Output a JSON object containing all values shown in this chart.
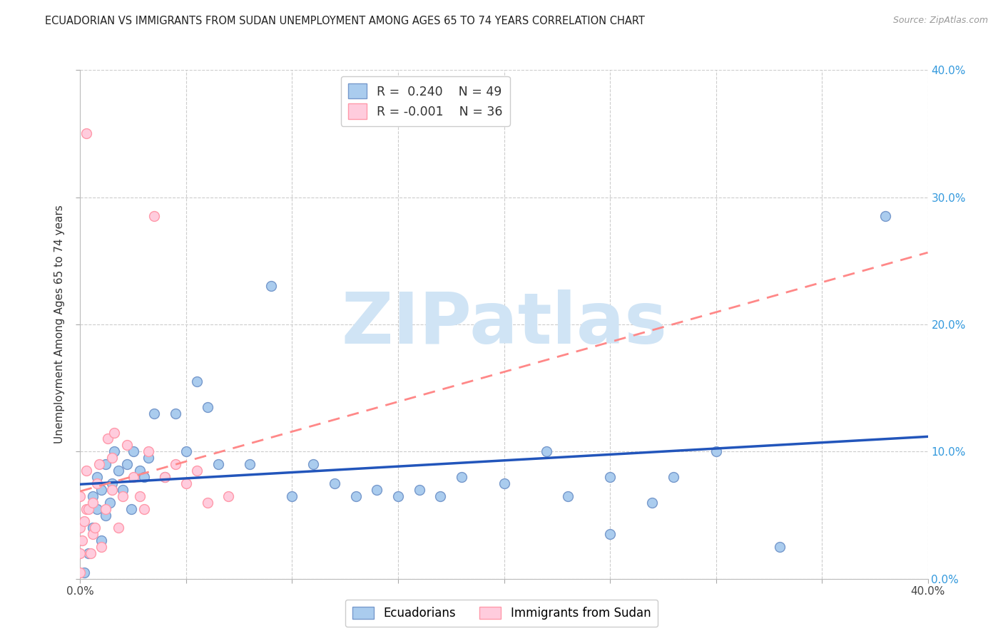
{
  "title": "ECUADORIAN VS IMMIGRANTS FROM SUDAN UNEMPLOYMENT AMONG AGES 65 TO 74 YEARS CORRELATION CHART",
  "source": "Source: ZipAtlas.com",
  "ylabel": "Unemployment Among Ages 65 to 74 years",
  "xlim": [
    0.0,
    0.4
  ],
  "ylim": [
    0.0,
    0.4
  ],
  "xticks": [
    0.0,
    0.05,
    0.1,
    0.15,
    0.2,
    0.25,
    0.3,
    0.35,
    0.4
  ],
  "yticks": [
    0.0,
    0.1,
    0.2,
    0.3,
    0.4
  ],
  "ytick_labels_right": [
    "0.0%",
    "10.0%",
    "20.0%",
    "30.0%",
    "40.0%"
  ],
  "blue_marker_face": "#AACCEE",
  "blue_marker_edge": "#7799CC",
  "pink_marker_face": "#FFCCDD",
  "pink_marker_edge": "#FF99AA",
  "trend_blue_color": "#2255BB",
  "trend_pink_color": "#FF8888",
  "R_blue": 0.24,
  "N_blue": 49,
  "R_pink": -0.001,
  "N_pink": 36,
  "watermark": "ZIPatlas",
  "watermark_color": "#D0E4F5",
  "legend_label_blue": "Ecuadorians",
  "legend_label_pink": "Immigrants from Sudan",
  "blue_points_x": [
    0.002,
    0.004,
    0.006,
    0.006,
    0.008,
    0.008,
    0.01,
    0.01,
    0.012,
    0.012,
    0.014,
    0.015,
    0.016,
    0.018,
    0.02,
    0.022,
    0.024,
    0.025,
    0.028,
    0.03,
    0.032,
    0.035,
    0.04,
    0.045,
    0.05,
    0.055,
    0.06,
    0.065,
    0.08,
    0.09,
    0.1,
    0.11,
    0.12,
    0.13,
    0.14,
    0.15,
    0.16,
    0.17,
    0.18,
    0.2,
    0.22,
    0.23,
    0.25,
    0.27,
    0.28,
    0.3,
    0.33,
    0.38,
    0.25
  ],
  "blue_points_y": [
    0.005,
    0.02,
    0.04,
    0.065,
    0.055,
    0.08,
    0.03,
    0.07,
    0.05,
    0.09,
    0.06,
    0.075,
    0.1,
    0.085,
    0.07,
    0.09,
    0.055,
    0.1,
    0.085,
    0.08,
    0.095,
    0.13,
    0.08,
    0.13,
    0.1,
    0.155,
    0.135,
    0.09,
    0.09,
    0.23,
    0.065,
    0.09,
    0.075,
    0.065,
    0.07,
    0.065,
    0.07,
    0.065,
    0.08,
    0.075,
    0.1,
    0.065,
    0.035,
    0.06,
    0.08,
    0.1,
    0.025,
    0.285,
    0.08
  ],
  "pink_points_x": [
    0.0,
    0.0,
    0.0,
    0.0,
    0.001,
    0.002,
    0.003,
    0.003,
    0.004,
    0.005,
    0.006,
    0.006,
    0.007,
    0.008,
    0.009,
    0.01,
    0.012,
    0.013,
    0.015,
    0.015,
    0.016,
    0.018,
    0.02,
    0.022,
    0.025,
    0.028,
    0.03,
    0.032,
    0.035,
    0.04,
    0.045,
    0.05,
    0.055,
    0.06,
    0.07,
    0.003
  ],
  "pink_points_y": [
    0.005,
    0.02,
    0.04,
    0.065,
    0.03,
    0.045,
    0.055,
    0.085,
    0.055,
    0.02,
    0.035,
    0.06,
    0.04,
    0.075,
    0.09,
    0.025,
    0.055,
    0.11,
    0.07,
    0.095,
    0.115,
    0.04,
    0.065,
    0.105,
    0.08,
    0.065,
    0.055,
    0.1,
    0.285,
    0.08,
    0.09,
    0.075,
    0.085,
    0.06,
    0.065,
    0.35
  ],
  "grid_color": "#CCCCCC",
  "bg_color": "#FFFFFF",
  "title_fontsize": 10.5,
  "source_fontsize": 9,
  "label_fontsize": 11,
  "ylabel_fontsize": 11
}
